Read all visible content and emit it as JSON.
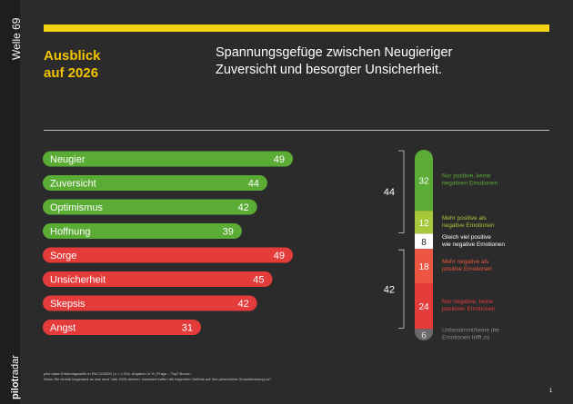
{
  "sidebar": {
    "wave": "Welle 69",
    "brand_bold": "pilot",
    "brand_light": "radar"
  },
  "header": {
    "headline_line1": "Ausblick",
    "headline_line2": "auf 2026",
    "subtitle_line1": "Spannungsgefüge zwischen Neugieriger",
    "subtitle_line2": "Zuversicht und besorgter Unsicherheit."
  },
  "colors": {
    "accent_yellow": "#f5d210",
    "headline": "#f2c300",
    "positive": "#5aac35",
    "negative": "#e43b3b",
    "mostly_positive": "#a6c83a",
    "mostly_negative": "#ec5642",
    "neutral": "#ffffff",
    "undetermined": "#6b6b6b"
  },
  "chart_data": [
    {
      "type": "bar",
      "orientation": "horizontal",
      "categories": [
        "Neugier",
        "Zuversicht",
        "Optimismus",
        "Hoffnung",
        "Sorge",
        "Unsicherheit",
        "Skepsis",
        "Angst"
      ],
      "values": [
        49,
        44,
        42,
        39,
        49,
        45,
        42,
        31
      ],
      "groups": [
        "positive",
        "positive",
        "positive",
        "positive",
        "negative",
        "negative",
        "negative",
        "negative"
      ],
      "xlim": [
        0,
        50
      ],
      "unit": "%"
    },
    {
      "type": "bar",
      "orientation": "stacked-vertical",
      "segments": [
        {
          "value": 32,
          "label": "Nur positive, keine negativen Emotionen",
          "group": "positive"
        },
        {
          "value": 12,
          "label": "Mehr positive als negative Emotionen",
          "group": "mostly_positive"
        },
        {
          "value": 8,
          "label": "Gleich viel positive wie negative Emotionen",
          "group": "neutral"
        },
        {
          "value": 18,
          "label": "Mehr negative als positive Emotionen",
          "group": "mostly_negative"
        },
        {
          "value": 24,
          "label": "Nur negative, keine positiven Emotionen",
          "group": "negative"
        },
        {
          "value": 6,
          "label": "Unbestimmt/keine der Emotionen trifft zu",
          "group": "undetermined"
        }
      ],
      "brackets": [
        {
          "value": 44,
          "segments": [
            0,
            1
          ]
        },
        {
          "value": 42,
          "segments": [
            3,
            4
          ]
        }
      ],
      "unit": "%"
    }
  ],
  "footer": {
    "line1": "pilot radar Erhebungswelle in KW 02/2026 | n = 1.004, Angaben in % | Frage – Top2 Boxes:",
    "line2": "Wenn Sie einmal insgesamt an das neue Jahr 2026 denken, inwieweit treffen die folgenden Gefühle auf Ihre persönliche Grundstimmung zu?"
  },
  "page_number": "1"
}
